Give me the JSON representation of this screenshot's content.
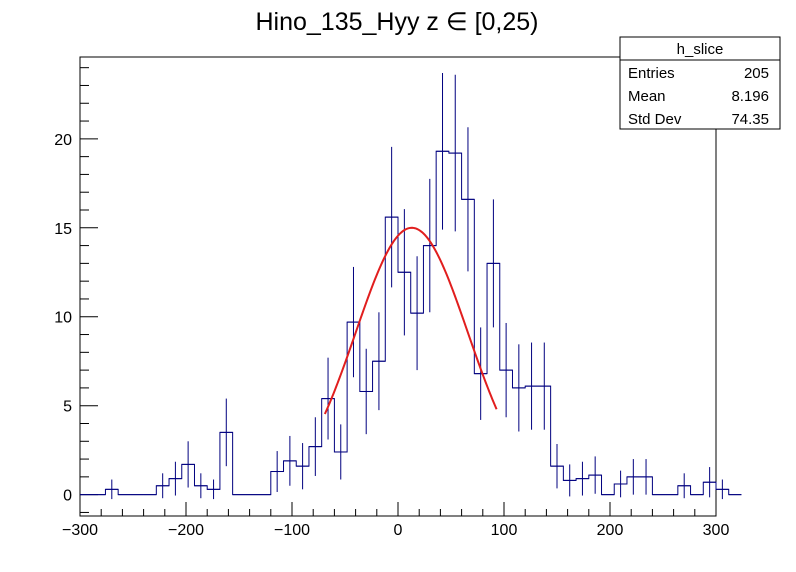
{
  "chart_data": {
    "type": "histogram",
    "title": "Hino_135_Hyy z  ∈ [0,25)",
    "xlabel": "",
    "ylabel": "",
    "xlim": [
      -300,
      300
    ],
    "ylim": [
      -1.2,
      24.6
    ],
    "xticks": [
      -300,
      -200,
      -100,
      0,
      100,
      200,
      300
    ],
    "yticks": [
      0,
      5,
      10,
      15,
      20
    ],
    "xtick_labels": [
      "−300",
      "−200",
      "−100",
      "0",
      "100",
      "200",
      "300"
    ],
    "ytick_labels": [
      "0",
      "5",
      "10",
      "15",
      "20"
    ],
    "bin_width": 12,
    "bin_start": -300,
    "values": [
      0,
      0,
      0.3,
      0,
      0,
      0,
      0.5,
      0.9,
      1.7,
      0.5,
      0.3,
      3.5,
      0,
      0,
      0,
      1.3,
      1.9,
      1.6,
      2.7,
      5.4,
      2.4,
      9.7,
      5.8,
      7.5,
      15.6,
      12.5,
      10.2,
      14.0,
      19.3,
      19.2,
      16.6,
      6.8,
      13.0,
      7.0,
      6.0,
      6.1,
      6.1,
      1.6,
      0.8,
      0.9,
      1.1,
      0,
      0.6,
      1.0,
      1.0,
      0,
      0,
      0.5,
      0,
      0.7,
      0.3,
      0
    ],
    "errors": [
      0,
      0,
      0.55,
      0,
      0,
      0,
      0.7,
      0.95,
      1.3,
      0.7,
      0.55,
      1.9,
      0,
      0,
      0,
      1.15,
      1.4,
      1.3,
      1.65,
      2.3,
      1.55,
      3.1,
      2.4,
      2.75,
      3.95,
      3.55,
      3.2,
      3.75,
      4.4,
      4.4,
      4.05,
      2.6,
      3.6,
      2.65,
      2.45,
      2.45,
      2.45,
      1.25,
      0.9,
      0.95,
      1.05,
      0,
      0.75,
      1.0,
      1.0,
      0,
      0,
      0.7,
      0,
      0.85,
      0.55,
      0
    ],
    "fit": {
      "name": "gaussian fit",
      "color": "#e11e1e",
      "xmin": -69,
      "xmax": 93,
      "amplitude": 15.0,
      "mean": 13,
      "sigma": 53
    },
    "histogram_color": "#00007f",
    "stats_box": {
      "title": "h_slice",
      "rows": [
        {
          "label": "Entries",
          "value": "205"
        },
        {
          "label": "Mean",
          "value": "8.196"
        },
        {
          "label": "Std Dev",
          "value": "74.35"
        }
      ]
    }
  }
}
